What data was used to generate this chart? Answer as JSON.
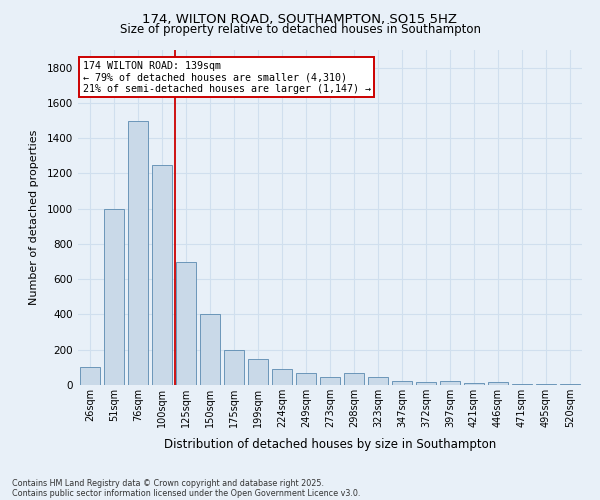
{
  "title_line1": "174, WILTON ROAD, SOUTHAMPTON, SO15 5HZ",
  "title_line2": "Size of property relative to detached houses in Southampton",
  "xlabel": "Distribution of detached houses by size in Southampton",
  "ylabel": "Number of detached properties",
  "categories": [
    "26sqm",
    "51sqm",
    "76sqm",
    "100sqm",
    "125sqm",
    "150sqm",
    "175sqm",
    "199sqm",
    "224sqm",
    "249sqm",
    "273sqm",
    "298sqm",
    "323sqm",
    "347sqm",
    "372sqm",
    "397sqm",
    "421sqm",
    "446sqm",
    "471sqm",
    "495sqm",
    "520sqm"
  ],
  "values": [
    100,
    1000,
    1500,
    1250,
    700,
    400,
    200,
    150,
    90,
    70,
    45,
    70,
    45,
    25,
    15,
    20,
    12,
    18,
    6,
    5,
    5
  ],
  "bar_color": "#c9d9e8",
  "bar_edge_color": "#5a8ab0",
  "grid_color": "#d0dfee",
  "background_color": "#e8f0f8",
  "vline_x_index": 3.56,
  "vline_color": "#cc0000",
  "annotation_text": "174 WILTON ROAD: 139sqm\n← 79% of detached houses are smaller (4,310)\n21% of semi-detached houses are larger (1,147) →",
  "annotation_box_color": "#ffffff",
  "annotation_box_edge": "#cc0000",
  "ylim": [
    0,
    1900
  ],
  "yticks": [
    0,
    200,
    400,
    600,
    800,
    1000,
    1200,
    1400,
    1600,
    1800
  ],
  "footer_line1": "Contains HM Land Registry data © Crown copyright and database right 2025.",
  "footer_line2": "Contains public sector information licensed under the Open Government Licence v3.0."
}
